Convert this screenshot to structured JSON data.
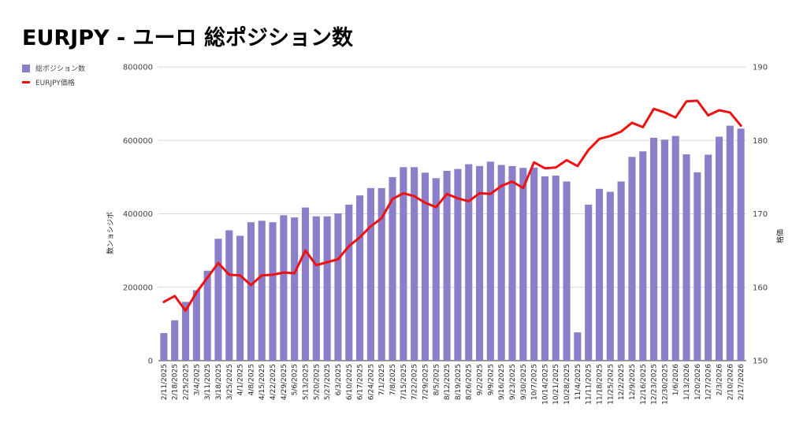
{
  "title": "EURJPY - ユーロ 総ポジション数",
  "legend": {
    "bar_label": "総ポジション数",
    "line_label": "EURJPY価格"
  },
  "colors": {
    "bar": "#8c7ec8",
    "line": "#ee1111",
    "grid": "#d9d9d9"
  },
  "chart_data": {
    "type": "bar",
    "title": "EURJPY - ユーロ 総ポジション数",
    "ylabel_left": "数ンョシジポ",
    "ylabel_right": "格価",
    "ylim_left": [
      0,
      800000
    ],
    "yticks_left": [
      "0",
      "200000",
      "400000",
      "600000",
      "800000"
    ],
    "ylim_right": [
      150,
      190
    ],
    "yticks_right": [
      "150",
      "160",
      "170",
      "180",
      "190"
    ],
    "grid": true,
    "legend_position": "top-left",
    "categories": [
      "2/11/2025",
      "2/18/2025",
      "2/25/2025",
      "3/4/2025",
      "3/11/2025",
      "3/18/2025",
      "3/25/2025",
      "4/1/2025",
      "4/8/2025",
      "4/15/2025",
      "4/22/2025",
      "4/29/2025",
      "5/6/2025",
      "5/13/2025",
      "5/20/2025",
      "5/27/2025",
      "6/3/2025",
      "6/10/2025",
      "6/17/2025",
      "6/24/2025",
      "7/1/2025",
      "7/8/2025",
      "7/15/2025",
      "7/22/2025",
      "7/29/2025",
      "8/5/2025",
      "8/12/2025",
      "8/19/2025",
      "8/26/2025",
      "9/2/2025",
      "9/9/2025",
      "9/16/2025",
      "9/23/2025",
      "9/30/2025",
      "10/7/2025",
      "10/14/2025",
      "10/21/2025",
      "10/28/2025",
      "11/4/2025",
      "11/11/2025",
      "11/18/2025",
      "11/25/2025",
      "12/2/2025",
      "12/9/2025",
      "12/16/2025",
      "12/23/2025",
      "12/30/2025",
      "1/6/2026",
      "1/13/2026",
      "1/20/2026",
      "1/27/2026",
      "2/3/2026",
      "2/10/2026",
      "2/17/2026"
    ],
    "xtick_labels": [
      "2/11/2025",
      "2/18/2025",
      "2/25/2025",
      "3/4/2025",
      "3/11/2025",
      "3/18/2025",
      "3/25/2025",
      "4/1/2025",
      "4/8/2025",
      "4/15/2025",
      "4/22/2025",
      "4/29/2025",
      "5/6/2025",
      "5/13/2025",
      "5/20/2025",
      "5/27/2025",
      "6/3/2025",
      "6/10/2025",
      "6/17/2025",
      "6/24/2025",
      "7/1/2025",
      "7/8/2025",
      "7/15/2025",
      "7/22/2025",
      "7/29/2025",
      "8/5/2025",
      "8/12/2025",
      "8/19/2025",
      "8/26/2025",
      "9/2/2025",
      "9/9/2025",
      "9/16/2025",
      "9/23/2025",
      "9/30/2025",
      "10/7/2025",
      "10/14/2025",
      "10/21/2025",
      "10/28/2025",
      "11/4/2025",
      "11/11/2025",
      "11/18/2025",
      "11/25/2025",
      "12/2/2025",
      "12/9/2025",
      "12/16/2025",
      "12/23/2025",
      "12/30/2025",
      "1/6/2026",
      "1/13/2026",
      "1/20/2026",
      "1/27/2026",
      "2/3/2026",
      "2/10/2026",
      "2/17/2026"
    ],
    "series": [
      {
        "name": "総ポジション数",
        "type": "bar",
        "axis": "left",
        "values": [
          75000,
          110000,
          160000,
          192000,
          245000,
          332000,
          355000,
          340000,
          377000,
          381000,
          377000,
          396000,
          390000,
          417000,
          393000,
          393000,
          401000,
          425000,
          450000,
          470000,
          470000,
          500000,
          527000,
          527000,
          512000,
          497000,
          517000,
          522000,
          535000,
          530000,
          542000,
          533000,
          530000,
          525000,
          526000,
          502000,
          504000,
          488000,
          77000,
          425000,
          468000,
          460000,
          488000,
          555000,
          570000,
          607000,
          602000,
          612000,
          562000,
          513000,
          561000,
          610000,
          640000,
          632000
        ]
      },
      {
        "name": "EURJPY価格",
        "type": "line",
        "axis": "right",
        "values": [
          158.0,
          158.8,
          156.8,
          159.3,
          161.3,
          163.3,
          161.7,
          161.6,
          160.3,
          161.6,
          161.7,
          162.0,
          161.9,
          165.0,
          163.0,
          163.4,
          163.8,
          165.6,
          166.8,
          168.3,
          169.4,
          172.0,
          172.8,
          172.4,
          171.5,
          170.9,
          172.7,
          172.1,
          171.7,
          172.8,
          172.7,
          173.8,
          174.4,
          173.5,
          177.0,
          176.2,
          176.3,
          177.3,
          176.5,
          178.7,
          180.2,
          180.6,
          181.2,
          182.4,
          181.8,
          184.3,
          183.8,
          183.1,
          185.3,
          185.4,
          183.4,
          184.1,
          183.8,
          182.0
        ]
      }
    ]
  }
}
